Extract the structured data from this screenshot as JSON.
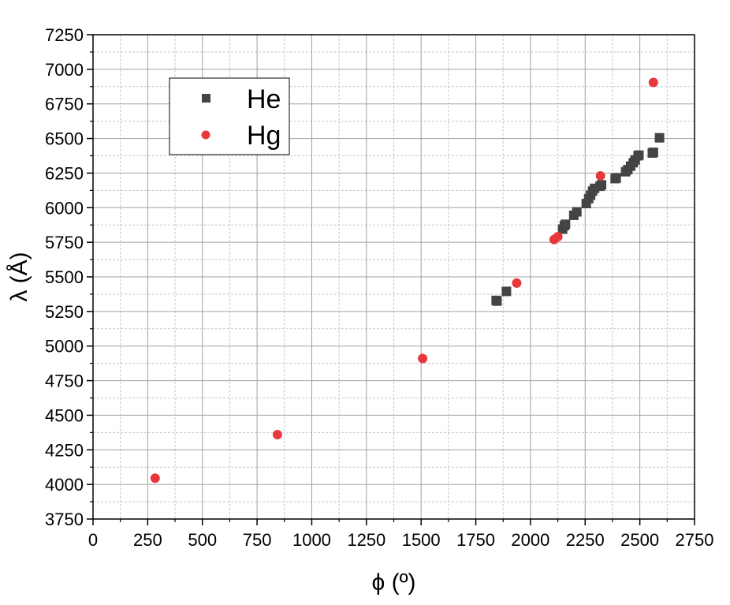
{
  "chart_data": {
    "type": "scatter",
    "xlabel": "ϕ (º)",
    "ylabel": "λ (Å)",
    "xlim": [
      0,
      2750
    ],
    "ylim": [
      3750,
      7250
    ],
    "x_ticks": [
      0,
      250,
      500,
      750,
      1000,
      1250,
      1500,
      1750,
      2000,
      2250,
      2500,
      2750
    ],
    "x_tick_labels": [
      "0",
      "250",
      "500",
      "750",
      "1000",
      "1250",
      "1500",
      "1750",
      "2000",
      "2250",
      "2500",
      "2750"
    ],
    "y_ticks": [
      3750,
      4000,
      4250,
      4500,
      4750,
      5000,
      5250,
      5500,
      5750,
      6000,
      6250,
      6500,
      6750,
      7000,
      7250
    ],
    "y_tick_labels": [
      "3750",
      "4000",
      "4250",
      "4500",
      "4750",
      "5000",
      "5250",
      "5500",
      "5750",
      "6000",
      "6250",
      "6500",
      "6750",
      "7000",
      "7250"
    ],
    "grid": true,
    "legend_position": "top-left",
    "series": [
      {
        "name": "He",
        "marker": "square",
        "color": "#444444",
        "points": [
          [
            1843,
            5330
          ],
          [
            1847,
            5325
          ],
          [
            1890,
            5395
          ],
          [
            2147,
            5845
          ],
          [
            2155,
            5870
          ],
          [
            2160,
            5880
          ],
          [
            2198,
            5945
          ],
          [
            2212,
            5970
          ],
          [
            2255,
            6030
          ],
          [
            2266,
            6065
          ],
          [
            2275,
            6090
          ],
          [
            2284,
            6120
          ],
          [
            2293,
            6140
          ],
          [
            2318,
            6155
          ],
          [
            2325,
            6165
          ],
          [
            2387,
            6210
          ],
          [
            2392,
            6215
          ],
          [
            2435,
            6260
          ],
          [
            2445,
            6275
          ],
          [
            2458,
            6300
          ],
          [
            2470,
            6325
          ],
          [
            2478,
            6345
          ],
          [
            2492,
            6375
          ],
          [
            2496,
            6380
          ],
          [
            2557,
            6395
          ],
          [
            2562,
            6400
          ],
          [
            2590,
            6505
          ]
        ]
      },
      {
        "name": "Hg",
        "marker": "circle",
        "color": "#e8383d",
        "points": [
          [
            284,
            4045
          ],
          [
            843,
            4360
          ],
          [
            1507,
            4910
          ],
          [
            1937,
            5455
          ],
          [
            2108,
            5770
          ],
          [
            2125,
            5790
          ],
          [
            2320,
            6230
          ],
          [
            2562,
            6905
          ]
        ]
      }
    ]
  }
}
